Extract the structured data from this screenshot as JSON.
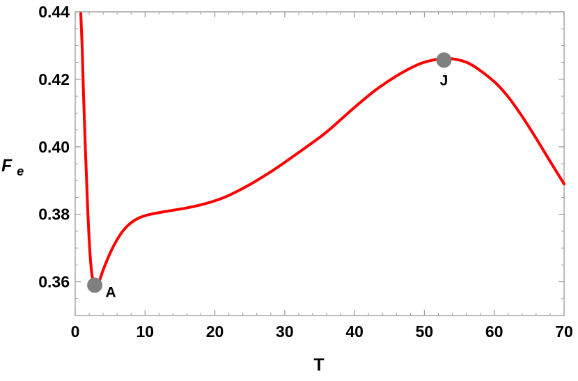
{
  "chart_data": {
    "type": "line",
    "xlabel": "T",
    "ylabel": {
      "main": "F",
      "subscript": "e"
    },
    "xlim": [
      0,
      70
    ],
    "ylim": [
      0.35,
      0.44
    ],
    "xticks": [
      {
        "value": 0,
        "label": "0"
      },
      {
        "value": 10,
        "label": "10"
      },
      {
        "value": 20,
        "label": "20"
      },
      {
        "value": 30,
        "label": "30"
      },
      {
        "value": 40,
        "label": "40"
      },
      {
        "value": 50,
        "label": "50"
      },
      {
        "value": 60,
        "label": "60"
      },
      {
        "value": 70,
        "label": "70"
      }
    ],
    "yticks": [
      {
        "value": 0.36,
        "label": "0.36"
      },
      {
        "value": 0.38,
        "label": "0.38"
      },
      {
        "value": 0.4,
        "label": "0.40"
      },
      {
        "value": 0.42,
        "label": "0.42"
      },
      {
        "value": 0.44,
        "label": "0.44"
      }
    ],
    "grid": false,
    "line_color": "#ff0000",
    "marker_color": "#808080",
    "series": [
      {
        "x": [
          0.8,
          1.0,
          1.2,
          1.5,
          1.8,
          2.1,
          2.4,
          2.7,
          3.0,
          3.5,
          4.0,
          5.0,
          6.0,
          7.0,
          8.0,
          9.0,
          10.0,
          11.0,
          12.0,
          14.0,
          16.0,
          18.0,
          20.0,
          22.0,
          25.0,
          28.0,
          30.0,
          33.0,
          36.0,
          40.0,
          43.0,
          46.0,
          49.0,
          51.0,
          53.0,
          55.0,
          57.0,
          60.0,
          62.0,
          64.0,
          66.0,
          68.0,
          70.0
        ],
        "values": [
          0.4395,
          0.429,
          0.415,
          0.397,
          0.381,
          0.369,
          0.362,
          0.3595,
          0.3588,
          0.3605,
          0.3635,
          0.3685,
          0.3725,
          0.3755,
          0.3775,
          0.3788,
          0.3796,
          0.3801,
          0.3805,
          0.3812,
          0.3819,
          0.3828,
          0.384,
          0.3856,
          0.3888,
          0.3926,
          0.3954,
          0.3998,
          0.4044,
          0.4117,
          0.4168,
          0.421,
          0.4243,
          0.4256,
          0.4262,
          0.4257,
          0.424,
          0.4193,
          0.4148,
          0.409,
          0.4025,
          0.3957,
          0.389
        ]
      }
    ],
    "points": [
      {
        "label": "A",
        "x": 2.8,
        "y": 0.359
      },
      {
        "label": "J",
        "x": 52.8,
        "y": 0.4257
      }
    ]
  }
}
